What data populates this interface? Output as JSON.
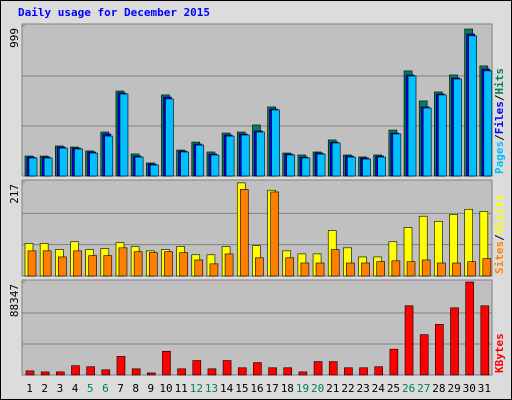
{
  "chart_data": [
    {
      "type": "bar",
      "title": "Daily usage for December 2015",
      "ylim": [
        0,
        999
      ],
      "yticks": [
        999
      ],
      "grid": true,
      "legend_separator": "/",
      "series": [
        {
          "name": "Hits",
          "color": "#00805c",
          "values": [
            133,
            133,
            200,
            193,
            167,
            293,
            566,
            147,
            87,
            540,
            173,
            226,
            160,
            286,
            293,
            340,
            460,
            153,
            140,
            160,
            240,
            140,
            127,
            140,
            306,
            700,
            500,
            560,
            673,
            979,
            733
          ]
        },
        {
          "name": "Files",
          "color": "#0000ff",
          "values": [
            126,
            126,
            193,
            186,
            160,
            280,
            553,
            133,
            80,
            526,
            166,
            213,
            146,
            273,
            280,
            300,
            446,
            146,
            126,
            153,
            226,
            133,
            120,
            133,
            286,
            673,
            460,
            546,
            653,
            946,
            713
          ]
        },
        {
          "name": "Pages",
          "color": "#00c0ff",
          "values": [
            120,
            120,
            186,
            180,
            153,
            266,
            546,
            126,
            73,
            513,
            160,
            206,
            140,
            266,
            273,
            293,
            440,
            140,
            120,
            146,
            220,
            126,
            113,
            126,
            280,
            666,
            453,
            540,
            646,
            933,
            700
          ]
        }
      ]
    },
    {
      "type": "bar",
      "ylim": [
        0,
        217
      ],
      "yticks": [
        217
      ],
      "grid": true,
      "legend_separator": "/",
      "series": [
        {
          "name": "Visits",
          "color": "#ffff00",
          "values": [
            75,
            75,
            61,
            79,
            61,
            63,
            77,
            68,
            58,
            61,
            68,
            49,
            49,
            68,
            215,
            70,
            198,
            58,
            51,
            51,
            105,
            65,
            44,
            44,
            79,
            112,
            138,
            126,
            142,
            154,
            149
          ]
        },
        {
          "name": "Sites",
          "color": "#ff8000",
          "values": [
            58,
            58,
            44,
            58,
            47,
            47,
            65,
            56,
            54,
            56,
            54,
            37,
            28,
            51,
            200,
            42,
            194,
            42,
            30,
            30,
            61,
            30,
            30,
            33,
            35,
            33,
            37,
            30,
            30,
            33,
            40
          ]
        }
      ]
    },
    {
      "type": "bar",
      "ylim": [
        0,
        88347
      ],
      "yticks": [
        88347
      ],
      "grid": true,
      "categories": [
        "1",
        "2",
        "3",
        "4",
        "5",
        "6",
        "7",
        "8",
        "9",
        "10",
        "11",
        "12",
        "13",
        "14",
        "15",
        "16",
        "17",
        "18",
        "19",
        "20",
        "21",
        "22",
        "23",
        "24",
        "25",
        "26",
        "27",
        "28",
        "29",
        "30",
        "31"
      ],
      "category_colors": [
        "#000000",
        "#000000",
        "#000000",
        "#000000",
        "#00805c",
        "#00805c",
        "#000000",
        "#000000",
        "#000000",
        "#000000",
        "#000000",
        "#00805c",
        "#00805c",
        "#000000",
        "#000000",
        "#000000",
        "#000000",
        "#000000",
        "#00805c",
        "#00805c",
        "#000000",
        "#000000",
        "#000000",
        "#000000",
        "#000000",
        "#00805c",
        "#00805c",
        "#000000",
        "#000000",
        "#000000",
        "#000000"
      ],
      "series": [
        {
          "name": "KBytes",
          "color": "#ff0000",
          "values": [
            3926,
            2945,
            2945,
            8835,
            7853,
            4908,
            17669,
            5890,
            1963,
            22578,
            5890,
            13743,
            5890,
            13743,
            6871,
            11780,
            6871,
            6871,
            2945,
            12761,
            12761,
            6871,
            6871,
            7853,
            24540,
            65768,
            38283,
            48099,
            63805,
            88347,
            65768
          ]
        }
      ]
    }
  ]
}
